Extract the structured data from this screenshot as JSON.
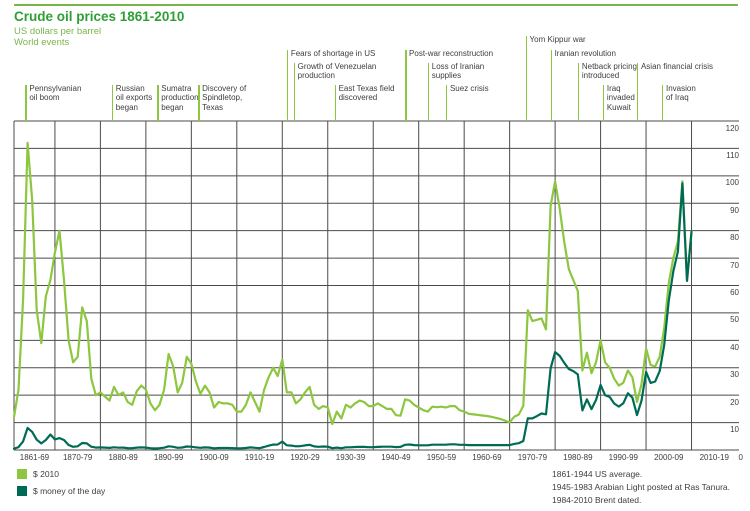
{
  "header": {
    "title": "Crude oil prices 1861-2010",
    "subtitle1": "US dollars per barrel",
    "subtitle2": "World events"
  },
  "colors": {
    "title_green": "#2f9e35",
    "subtitle_green": "#79b64a",
    "top_rule_green": "#79b64a",
    "series_light_green": "#8dc63f",
    "series_dark_green": "#006b54",
    "grid": "#4b4b49",
    "text": "#3e3e3d"
  },
  "legend": {
    "items": [
      {
        "label": "$ 2010",
        "color_key": "series_light_green"
      },
      {
        "label": "$ money of the day",
        "color_key": "series_dark_green"
      }
    ]
  },
  "footnotes": [
    "1861-1944 US average.",
    "1945-1983 Arabian Light posted at Ras Tanura.",
    "1984-2010 Brent dated."
  ],
  "events": [
    {
      "label": "Pennsylvanian\noil boom",
      "year": 1863.5,
      "tier": 4
    },
    {
      "label": "Russian\noil exports\nbegan",
      "year": 1882.5,
      "tier": 4
    },
    {
      "label": "Sumatra\nproduction\nbegan",
      "year": 1892.5,
      "tier": 4
    },
    {
      "label": "Discovery of\nSpindletop,\nTexas",
      "year": 1901.5,
      "tier": 4
    },
    {
      "label": "Fears of shortage in US",
      "year": 1921,
      "tier": 2
    },
    {
      "label": "Growth of Venezuelan\nproduction",
      "year": 1922.5,
      "tier": 3
    },
    {
      "label": "East Texas field\ndiscovered",
      "year": 1931.5,
      "tier": 4
    },
    {
      "label": "Post-war reconstruction",
      "year": 1947,
      "tier": 2
    },
    {
      "label": "Loss of Iranian\nsupplies",
      "year": 1952,
      "tier": 3
    },
    {
      "label": "Suez crisis",
      "year": 1956,
      "tier": 4
    },
    {
      "label": "Yom Kippur war",
      "year": 1973.5,
      "tier": 1
    },
    {
      "label": "Iranian revolution",
      "year": 1979,
      "tier": 2
    },
    {
      "label": "Netback pricing\nintroduced",
      "year": 1985,
      "tier": 3
    },
    {
      "label": "Iraq\ninvaded\nKuwait",
      "year": 1990.5,
      "tier": 4
    },
    {
      "label": "Asian financial crisis",
      "year": 1998,
      "tier": 3
    },
    {
      "label": "Invasion\nof Iraq",
      "year": 2003.5,
      "tier": 4
    }
  ],
  "chart_data": {
    "type": "line",
    "title": "Crude oil prices 1861-2010",
    "ylabel": "US dollars per barrel",
    "x_axis": {
      "year_start": 1861,
      "year_axis_end": 2020,
      "decade_edges": [
        1861,
        1870,
        1880,
        1890,
        1900,
        1910,
        1920,
        1930,
        1940,
        1950,
        1960,
        1970,
        1980,
        1990,
        2000,
        2010,
        2020
      ],
      "decade_labels": [
        "1861-69",
        "1870-79",
        "1880-89",
        "1890-99",
        "1900-09",
        "1910-19",
        "1920-29",
        "1930-39",
        "1940-49",
        "1950-59",
        "1960-69",
        "1970-79",
        "1980-89",
        "1990-99",
        "2000-09",
        "2010-19"
      ]
    },
    "y_axis": {
      "min": 0,
      "max": 120,
      "tick_step": 10,
      "zero_label": "0",
      "tick_labels": [
        "120",
        "110",
        "100",
        "90",
        "80",
        "70",
        "60",
        "50",
        "40",
        "30",
        "20",
        "10"
      ]
    },
    "grid": true,
    "legend_position": "bottom-left",
    "series": [
      {
        "name": "$ 2010",
        "color_key": "series_light_green",
        "first_year": 1861,
        "values": [
          12,
          22,
          55,
          112,
          91,
          51,
          39,
          56,
          62,
          72,
          80,
          62,
          40,
          32,
          34,
          52,
          47,
          26,
          20,
          21,
          19.5,
          18,
          23,
          20,
          21,
          17.5,
          16.5,
          21.5,
          23.5,
          22,
          17,
          14.5,
          16.5,
          22,
          35,
          30.5,
          21,
          24.5,
          34,
          31.5,
          25,
          20.5,
          23.5,
          21,
          15.5,
          17.5,
          17,
          17,
          16.5,
          14,
          14,
          16.5,
          21,
          17.5,
          14,
          22,
          26.5,
          30,
          27,
          33,
          21,
          21,
          17,
          18.5,
          21,
          23,
          16.5,
          15,
          16,
          15.5,
          9.5,
          14,
          11.5,
          16.5,
          15.5,
          17,
          18,
          17.5,
          16,
          16,
          17,
          16,
          15,
          15,
          12.7,
          12.5,
          18.5,
          18,
          16.5,
          15.5,
          14.5,
          14,
          15.8,
          15.6,
          15.8,
          15.5,
          16,
          16,
          14.5,
          14,
          13.2,
          13,
          12.8,
          12.6,
          12.4,
          12.1,
          11.7,
          11.3,
          10.7,
          10.1,
          12.1,
          12.9,
          16.1,
          51,
          47,
          47.5,
          48,
          44,
          89,
          98,
          88,
          76,
          66,
          62,
          58,
          29,
          35.5,
          28,
          32,
          40,
          32,
          30,
          26,
          23.5,
          24.5,
          29,
          26.5,
          17.5,
          24,
          37,
          31,
          30.5,
          34,
          44.5,
          61,
          70,
          76,
          98,
          62,
          79.5
        ]
      },
      {
        "name": "$ money of the day",
        "color_key": "series_dark_green",
        "first_year": 1861,
        "values": [
          0.49,
          1.05,
          3.15,
          8.06,
          6.59,
          3.74,
          2.41,
          3.63,
          5.64,
          3.86,
          4.34,
          3.64,
          1.83,
          1.17,
          1.35,
          2.56,
          2.42,
          1.19,
          0.86,
          0.95,
          0.86,
          0.78,
          1.0,
          0.84,
          0.88,
          0.71,
          0.67,
          0.88,
          0.94,
          0.87,
          0.67,
          0.56,
          0.64,
          0.84,
          1.36,
          1.18,
          0.79,
          0.91,
          1.29,
          1.19,
          0.96,
          0.8,
          0.94,
          0.86,
          0.62,
          0.73,
          0.72,
          0.72,
          0.7,
          0.61,
          0.61,
          0.74,
          0.95,
          0.81,
          0.64,
          1.1,
          1.56,
          1.98,
          2.01,
          3.07,
          1.73,
          1.61,
          1.34,
          1.43,
          1.68,
          1.88,
          1.3,
          1.17,
          1.27,
          1.19,
          0.65,
          0.87,
          0.67,
          1.0,
          0.97,
          1.09,
          1.18,
          1.13,
          1.02,
          1.02,
          1.14,
          1.19,
          1.2,
          1.21,
          1.05,
          1.12,
          1.9,
          1.99,
          1.78,
          1.71,
          1.71,
          1.71,
          1.93,
          1.93,
          1.93,
          1.93,
          2.08,
          2.08,
          1.9,
          1.9,
          1.8,
          1.8,
          1.8,
          1.8,
          1.8,
          1.8,
          1.8,
          1.8,
          1.8,
          1.8,
          2.24,
          2.48,
          3.29,
          11.58,
          11.53,
          12.38,
          13.3,
          13.03,
          29.75,
          35.69,
          34.32,
          31.8,
          29.55,
          28.78,
          27.56,
          14.43,
          18.44,
          14.92,
          18.23,
          23.73,
          20.0,
          19.32,
          16.97,
          15.82,
          17.02,
          20.67,
          19.09,
          12.72,
          17.97,
          28.5,
          24.44,
          25.02,
          28.83,
          38.27,
          54.52,
          65.14,
          72.39,
          97.26,
          61.67,
          79.5
        ]
      }
    ]
  }
}
